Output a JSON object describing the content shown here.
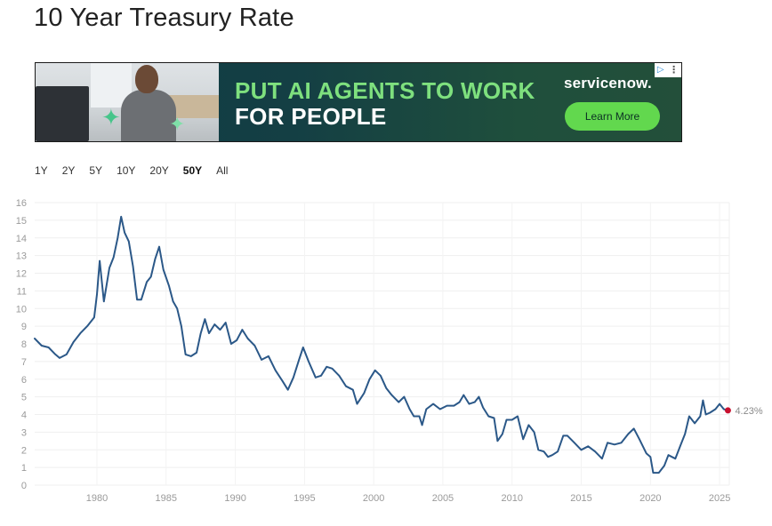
{
  "page": {
    "title": "10 Year Treasury Rate"
  },
  "ad": {
    "headline_1": "PUT AI AGENTS TO WORK",
    "headline_2": "FOR PEOPLE",
    "brand": "servicenow.",
    "cta_label": "Learn More",
    "choices_icon": "ad-choices-icon",
    "menu_icon": "more-vertical-icon",
    "colors": {
      "headline_green": "#7ee07e",
      "cta_green": "#62d84e"
    }
  },
  "range_tabs": [
    {
      "label": "1Y",
      "active": false
    },
    {
      "label": "2Y",
      "active": false
    },
    {
      "label": "5Y",
      "active": false
    },
    {
      "label": "10Y",
      "active": false
    },
    {
      "label": "20Y",
      "active": false
    },
    {
      "label": "50Y",
      "active": true
    },
    {
      "label": "All",
      "active": false
    }
  ],
  "chart_data": {
    "type": "line",
    "title": "",
    "xlabel": "",
    "ylabel": "",
    "xlim": [
      1975.5,
      2025.7
    ],
    "ylim": [
      0,
      16
    ],
    "y_ticks": [
      "0",
      "1",
      "2",
      "3",
      "4",
      "5",
      "6",
      "7",
      "8",
      "9",
      "10",
      "11",
      "12",
      "13",
      "14",
      "15",
      "16"
    ],
    "x_ticks": [
      "1980",
      "1985",
      "1990",
      "1995",
      "2000",
      "2005",
      "2010",
      "2015",
      "2020",
      "2025"
    ],
    "grid": true,
    "line_color": "#2b5888",
    "marker_color": "#c8102e",
    "end_label": "4.23%",
    "series": [
      {
        "x": [
          1975.5,
          1976.0,
          1976.5,
          1977.0,
          1977.3,
          1977.8,
          1978.3,
          1978.8,
          1979.3,
          1979.8,
          1980.0,
          1980.2,
          1980.5,
          1980.9,
          1981.2,
          1981.5,
          1981.75,
          1982.0,
          1982.3,
          1982.6,
          1982.9,
          1983.2,
          1983.6,
          1983.9,
          1984.2,
          1984.5,
          1984.8,
          1985.2,
          1985.5,
          1985.8,
          1986.1,
          1986.4,
          1986.8,
          1987.2,
          1987.5,
          1987.8,
          1988.1,
          1988.5,
          1988.9,
          1989.3,
          1989.7,
          1990.1,
          1990.5,
          1990.9,
          1991.4,
          1991.9,
          1992.4,
          1992.9,
          1993.4,
          1993.8,
          1994.2,
          1994.6,
          1994.9,
          1995.3,
          1995.8,
          1996.2,
          1996.6,
          1997.0,
          1997.5,
          1998.0,
          1998.5,
          1998.8,
          1999.3,
          1999.7,
          2000.1,
          2000.5,
          2000.9,
          2001.3,
          2001.8,
          2002.2,
          2002.6,
          2002.9,
          2003.3,
          2003.5,
          2003.8,
          2004.3,
          2004.8,
          2005.3,
          2005.8,
          2006.2,
          2006.5,
          2006.9,
          2007.3,
          2007.6,
          2007.9,
          2008.3,
          2008.7,
          2008.95,
          2009.3,
          2009.6,
          2010.0,
          2010.4,
          2010.8,
          2011.2,
          2011.6,
          2011.9,
          2012.3,
          2012.6,
          2012.9,
          2013.3,
          2013.7,
          2014.0,
          2014.5,
          2015.0,
          2015.5,
          2016.0,
          2016.5,
          2016.9,
          2017.4,
          2017.9,
          2018.4,
          2018.8,
          2019.2,
          2019.7,
          2020.0,
          2020.2,
          2020.6,
          2021.0,
          2021.3,
          2021.8,
          2022.2,
          2022.5,
          2022.8,
          2023.2,
          2023.6,
          2023.8,
          2024.0,
          2024.3,
          2024.7,
          2025.0,
          2025.3,
          2025.6
        ],
        "y": [
          8.3,
          7.9,
          7.8,
          7.4,
          7.2,
          7.4,
          8.1,
          8.6,
          9.0,
          9.5,
          10.8,
          12.7,
          10.4,
          12.3,
          12.9,
          14.0,
          15.2,
          14.3,
          13.8,
          12.4,
          10.5,
          10.5,
          11.5,
          11.8,
          12.8,
          13.5,
          12.2,
          11.3,
          10.4,
          10.0,
          9.0,
          7.4,
          7.3,
          7.5,
          8.6,
          9.4,
          8.6,
          9.1,
          8.8,
          9.2,
          8.0,
          8.2,
          8.8,
          8.3,
          7.9,
          7.1,
          7.3,
          6.5,
          5.9,
          5.4,
          6.1,
          7.1,
          7.8,
          7.0,
          6.1,
          6.2,
          6.7,
          6.6,
          6.2,
          5.6,
          5.4,
          4.6,
          5.2,
          6.0,
          6.5,
          6.2,
          5.5,
          5.1,
          4.7,
          5.0,
          4.3,
          3.9,
          3.9,
          3.4,
          4.3,
          4.6,
          4.3,
          4.5,
          4.5,
          4.7,
          5.1,
          4.6,
          4.7,
          5.0,
          4.4,
          3.9,
          3.8,
          2.5,
          2.9,
          3.7,
          3.7,
          3.9,
          2.6,
          3.4,
          3.0,
          2.0,
          1.9,
          1.6,
          1.7,
          1.9,
          2.8,
          2.8,
          2.4,
          2.0,
          2.2,
          1.9,
          1.5,
          2.4,
          2.3,
          2.4,
          2.9,
          3.2,
          2.6,
          1.8,
          1.6,
          0.7,
          0.7,
          1.1,
          1.7,
          1.5,
          2.3,
          2.9,
          3.9,
          3.5,
          3.9,
          4.8,
          4.0,
          4.1,
          4.3,
          4.6,
          4.3,
          4.23
        ]
      }
    ]
  }
}
